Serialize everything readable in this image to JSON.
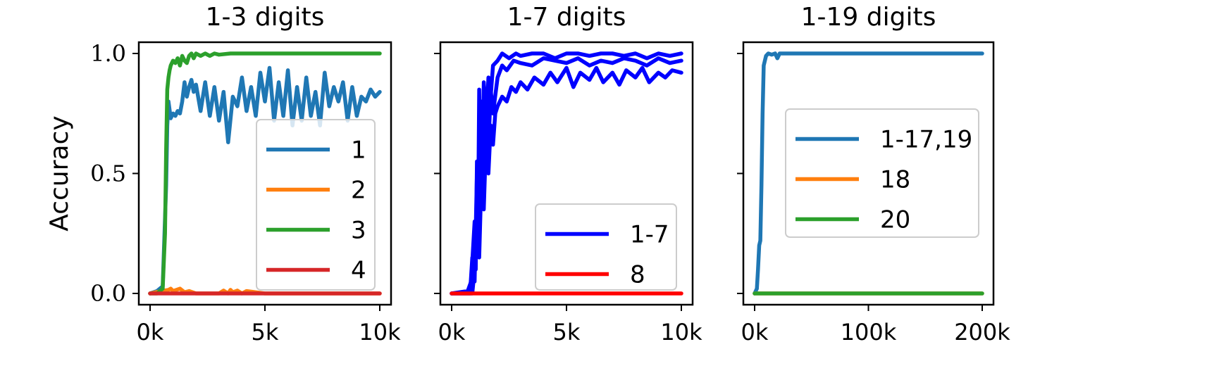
{
  "chart_data": [
    {
      "type": "line",
      "title": "1-3 digits",
      "ylabel": "Accuracy",
      "xlim": [
        0,
        10000
      ],
      "ylim": [
        0,
        1
      ],
      "xticks": [
        0,
        5000,
        10000
      ],
      "xtick_labels": [
        "0k",
        "5k",
        "10k"
      ],
      "yticks": [
        0,
        0.5,
        1.0
      ],
      "ytick_labels": [
        "0.0",
        "0.5",
        "1.0"
      ],
      "legend_position": "lower-right",
      "series": [
        {
          "name": "1",
          "color": "#1f77b4",
          "x": [
            0,
            300,
            550,
            700,
            750,
            800,
            900,
            1000,
            1100,
            1200,
            1300,
            1400,
            1500,
            1600,
            1700,
            1800,
            1900,
            2000,
            2200,
            2400,
            2600,
            2800,
            3000,
            3200,
            3400,
            3600,
            3800,
            4000,
            4200,
            4400,
            4600,
            4800,
            5000,
            5200,
            5400,
            5600,
            5800,
            6000,
            6200,
            6400,
            6600,
            6800,
            7000,
            7200,
            7400,
            7600,
            7800,
            8000,
            8200,
            8400,
            8600,
            8800,
            9000,
            9200,
            9400,
            9600,
            9800,
            10000
          ],
          "y": [
            0,
            0.01,
            0.03,
            0.45,
            0.7,
            0.8,
            0.73,
            0.75,
            0.74,
            0.76,
            0.75,
            0.8,
            0.88,
            0.82,
            0.86,
            0.89,
            0.84,
            0.87,
            0.76,
            0.88,
            0.74,
            0.86,
            0.72,
            0.84,
            0.63,
            0.82,
            0.78,
            0.9,
            0.76,
            0.86,
            0.74,
            0.92,
            0.8,
            0.94,
            0.72,
            0.88,
            0.74,
            0.93,
            0.7,
            0.86,
            0.72,
            0.9,
            0.74,
            0.84,
            0.7,
            0.92,
            0.78,
            0.86,
            0.8,
            0.88,
            0.72,
            0.86,
            0.74,
            0.82,
            0.8,
            0.85,
            0.82,
            0.84
          ]
        },
        {
          "name": "2",
          "color": "#ff7f0e",
          "x": [
            0,
            500,
            800,
            900,
            1000,
            1300,
            1500,
            1700,
            2000,
            3000,
            3200,
            3400,
            3500,
            3600,
            3800,
            4000,
            4200,
            5000,
            6000,
            8000,
            10000
          ],
          "y": [
            0,
            0.01,
            0.015,
            0.02,
            0.01,
            0.02,
            0.005,
            0.01,
            0.0,
            0.0,
            0.012,
            0.0,
            0.015,
            0.005,
            0.012,
            0.0,
            0.01,
            0.0,
            0.0,
            0.0,
            0.0
          ]
        },
        {
          "name": "3",
          "color": "#2ca02c",
          "x": [
            0,
            300,
            550,
            650,
            700,
            750,
            800,
            850,
            900,
            1000,
            1100,
            1200,
            1300,
            1400,
            1500,
            1600,
            1700,
            1800,
            1900,
            2000,
            2200,
            2400,
            2600,
            2800,
            3000,
            3500,
            4000,
            5000,
            6000,
            7000,
            8000,
            9000,
            10000
          ],
          "y": [
            0,
            0.0,
            0.02,
            0.25,
            0.6,
            0.85,
            0.9,
            0.93,
            0.95,
            0.97,
            0.96,
            0.98,
            0.95,
            0.99,
            0.97,
            0.96,
            0.99,
            1.0,
            0.98,
            1.0,
            0.99,
            1.0,
            0.99,
            1.0,
            0.995,
            1.0,
            1.0,
            1.0,
            1.0,
            1.0,
            1.0,
            1.0,
            1.0
          ]
        },
        {
          "name": "4",
          "color": "#d62728",
          "x": [
            0,
            10000
          ],
          "y": [
            0,
            0
          ]
        }
      ]
    },
    {
      "type": "line",
      "title": "1-7 digits",
      "xlim": [
        0,
        10000
      ],
      "ylim": [
        0,
        1
      ],
      "xticks": [
        0,
        5000,
        10000
      ],
      "xtick_labels": [
        "0k",
        "5k",
        "10k"
      ],
      "legend_position": "lower-right",
      "series": [
        {
          "name": "1-7",
          "color": "#0000ff",
          "x": [
            0,
            700,
            850,
            1000,
            1050,
            1100,
            1150,
            1200,
            1250,
            1300,
            1350,
            1400,
            1500,
            1600,
            1700,
            1800,
            2000,
            2200,
            2500,
            2800,
            3000,
            3500,
            4000,
            4500,
            5000,
            5500,
            6000,
            6500,
            7000,
            7500,
            8000,
            8500,
            9000,
            9500,
            10000
          ],
          "y": [
            0,
            0.01,
            0.05,
            0.3,
            0.1,
            0.55,
            0.3,
            0.85,
            0.4,
            0.8,
            0.6,
            0.88,
            0.7,
            0.9,
            0.82,
            0.95,
            0.97,
            1.0,
            0.98,
            1.0,
            0.99,
            1.0,
            1.0,
            0.98,
            1.0,
            1.0,
            0.99,
            1.0,
            1.0,
            0.99,
            1.0,
            0.98,
            1.0,
            0.99,
            1.0
          ]
        },
        {
          "name": "",
          "color": "#0000ff",
          "x": [
            0,
            800,
            900,
            1000,
            1100,
            1200,
            1300,
            1400,
            1500,
            1600,
            1700,
            1800,
            2000,
            2200,
            2400,
            2700,
            3000,
            3500,
            4000,
            4500,
            5000,
            5500,
            6000,
            6500,
            7000,
            7500,
            8000,
            8500,
            9000,
            9500,
            10000
          ],
          "y": [
            0,
            0.0,
            0.15,
            0.05,
            0.5,
            0.2,
            0.7,
            0.45,
            0.8,
            0.6,
            0.85,
            0.75,
            0.9,
            0.95,
            0.93,
            0.97,
            0.96,
            0.95,
            0.98,
            0.97,
            0.96,
            0.98,
            0.95,
            0.97,
            0.96,
            0.98,
            0.97,
            0.95,
            0.98,
            0.96,
            0.97
          ]
        },
        {
          "name": "",
          "color": "#0000ff",
          "x": [
            0,
            900,
            1000,
            1100,
            1200,
            1300,
            1400,
            1500,
            1600,
            1700,
            1800,
            1900,
            2000,
            2200,
            2400,
            2600,
            2800,
            3000,
            3300,
            3600,
            4000,
            4300,
            4600,
            5000,
            5300,
            5600,
            6000,
            6300,
            6600,
            7000,
            7300,
            7600,
            8000,
            8300,
            8600,
            9000,
            9300,
            9600,
            10000
          ],
          "y": [
            0,
            0.0,
            0.1,
            0.3,
            0.15,
            0.5,
            0.35,
            0.65,
            0.5,
            0.7,
            0.62,
            0.75,
            0.78,
            0.82,
            0.8,
            0.86,
            0.84,
            0.88,
            0.85,
            0.9,
            0.87,
            0.92,
            0.88,
            0.94,
            0.86,
            0.92,
            0.89,
            0.94,
            0.88,
            0.92,
            0.87,
            0.93,
            0.9,
            0.94,
            0.88,
            0.92,
            0.9,
            0.93,
            0.92
          ]
        },
        {
          "name": "8",
          "color": "#ff0000",
          "x": [
            0,
            10000
          ],
          "y": [
            0,
            0
          ]
        }
      ]
    },
    {
      "type": "line",
      "title": "1-19 digits",
      "xlim": [
        0,
        200000
      ],
      "ylim": [
        0,
        1
      ],
      "xticks": [
        0,
        100000,
        200000
      ],
      "xtick_labels": [
        "0k",
        "100k",
        "200k"
      ],
      "legend_position": "center-right",
      "series": [
        {
          "name": "1-17,19",
          "color": "#1f77b4",
          "x": [
            0,
            2000,
            3000,
            4000,
            5000,
            6000,
            7000,
            8000,
            10000,
            12000,
            15000,
            18000,
            20000,
            22000,
            25000,
            30000,
            50000,
            100000,
            150000,
            200000
          ],
          "y": [
            0,
            0.02,
            0.1,
            0.2,
            0.22,
            0.45,
            0.75,
            0.95,
            0.99,
            1.0,
            0.995,
            1.0,
            0.98,
            1.0,
            1.0,
            1.0,
            1.0,
            1.0,
            1.0,
            1.0
          ]
        },
        {
          "name": "18",
          "color": "#ff7f0e",
          "x": [
            0,
            200000
          ],
          "y": [
            0,
            0
          ]
        },
        {
          "name": "20",
          "color": "#2ca02c",
          "x": [
            0,
            200000
          ],
          "y": [
            0,
            0
          ]
        }
      ]
    }
  ]
}
